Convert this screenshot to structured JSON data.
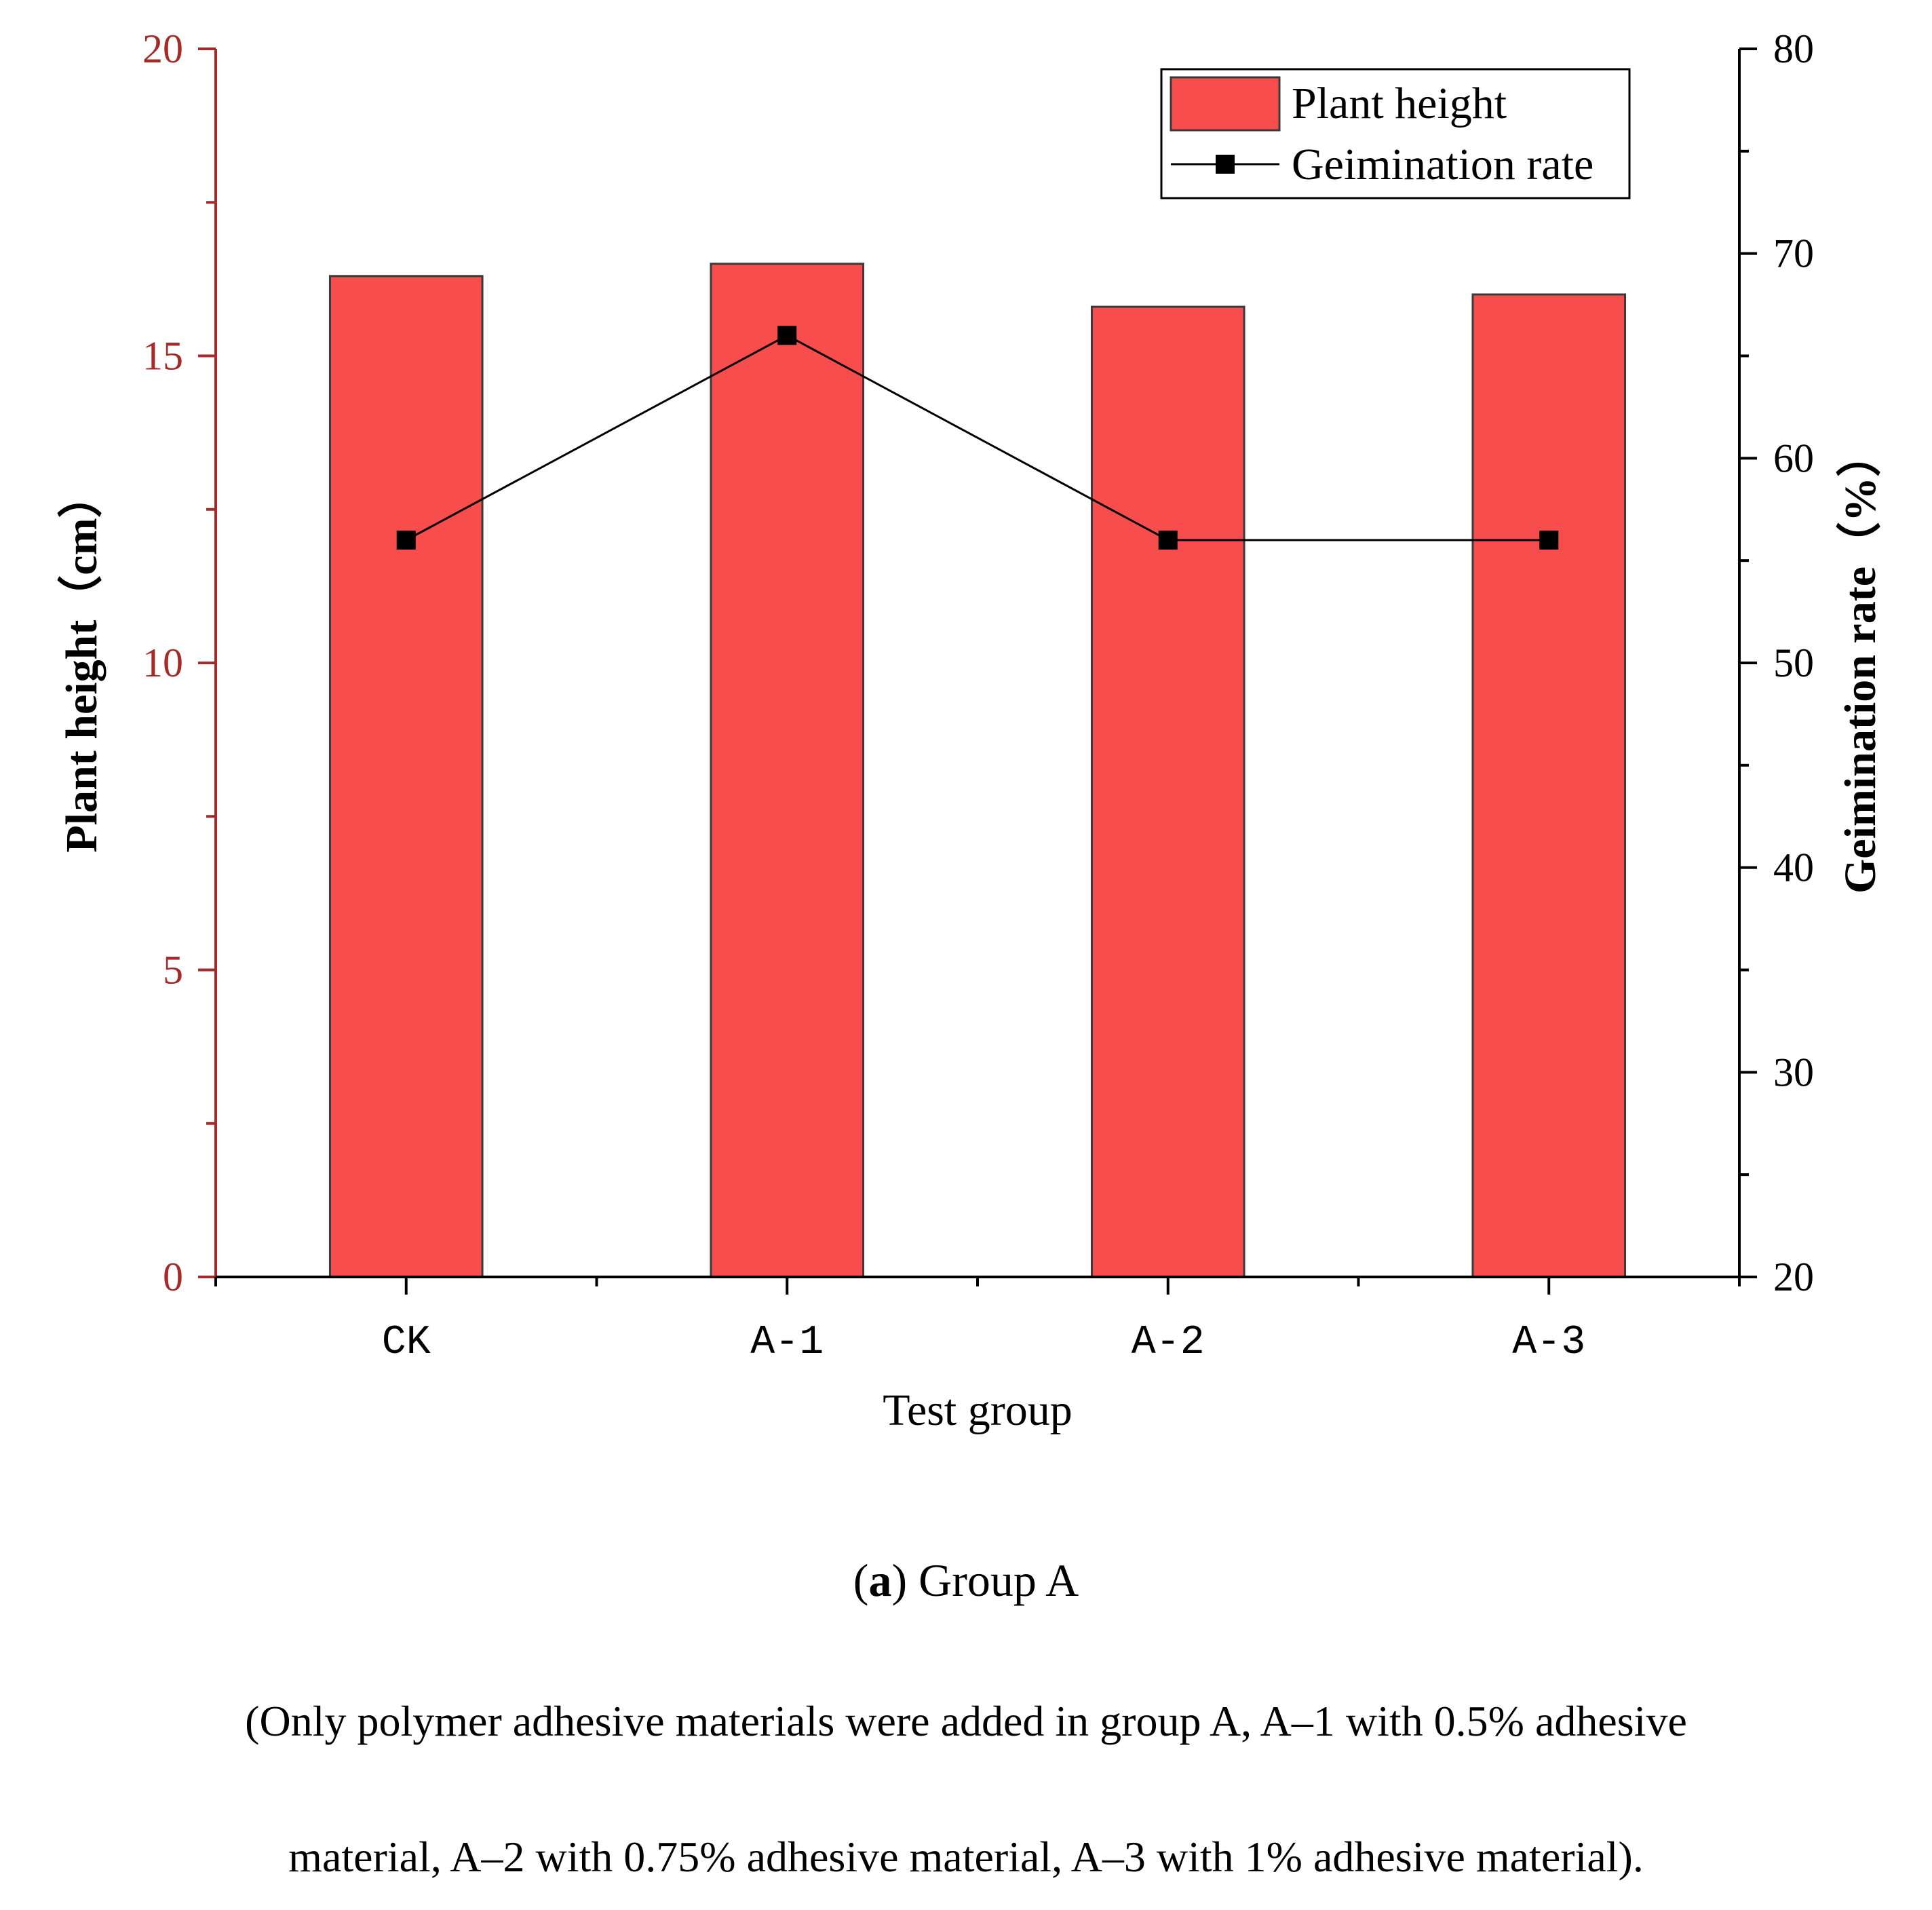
{
  "chart_data": {
    "type": "bar",
    "categories": [
      "CK",
      "A-1",
      "A-2",
      "A-3"
    ],
    "series": [
      {
        "name": "Plant height",
        "type": "bar",
        "axis": "left",
        "values": [
          16.3,
          16.5,
          15.8,
          16.0
        ],
        "color": "#F74D4D"
      },
      {
        "name": "Geimination rate",
        "type": "line",
        "axis": "right",
        "values": [
          56,
          66,
          56,
          56
        ],
        "color": "#000000"
      }
    ],
    "xlabel": "Test group",
    "ylabel_left": "Plant height（cm）",
    "ylabel_right": "Geimination rate（%）",
    "ylim_left": [
      0,
      20
    ],
    "ylim_right": [
      20,
      80
    ],
    "yticks_left": [
      "0",
      "5",
      "10",
      "15",
      "20"
    ],
    "yticks_right": [
      "20",
      "30",
      "40",
      "50",
      "60",
      "70",
      "80"
    ],
    "left_axis_color": "#A52A2A",
    "legend": {
      "position": "top-right",
      "entries": [
        "Plant height",
        "Geimination rate"
      ]
    }
  },
  "caption": {
    "label": "a",
    "title": "Group A",
    "line1": "(Only polymer adhesive materials were added in group A, A–1 with 0.5% adhesive",
    "line2": "material, A–2 with 0.75% adhesive material, A–3 with 1% adhesive material)."
  }
}
